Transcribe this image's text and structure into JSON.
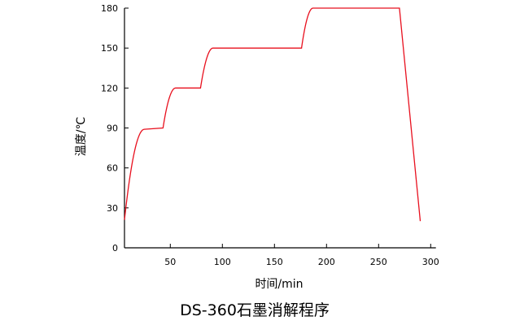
{
  "chart_data": {
    "type": "line",
    "title": "DS-360石墨消解程序",
    "xlabel": "时间/min",
    "ylabel": "温度/℃",
    "xlim": [
      6,
      305
    ],
    "ylim": [
      0,
      180
    ],
    "xticks": [
      50,
      100,
      150,
      200,
      250,
      300
    ],
    "yticks": [
      0,
      30,
      60,
      90,
      120,
      150,
      180
    ],
    "grid": false,
    "line_color": "#e8101e",
    "series": [
      {
        "points": [
          {
            "x": 6,
            "y": 21,
            "ramp": false
          },
          {
            "x": 25,
            "y": 89,
            "ramp": true
          },
          {
            "x": 43,
            "y": 90,
            "ramp": false
          },
          {
            "x": 55,
            "y": 120,
            "ramp": true
          },
          {
            "x": 79,
            "y": 120,
            "ramp": false
          },
          {
            "x": 91,
            "y": 150,
            "ramp": true
          },
          {
            "x": 176,
            "y": 150,
            "ramp": false
          },
          {
            "x": 187,
            "y": 180,
            "ramp": true
          },
          {
            "x": 270,
            "y": 180,
            "ramp": false
          },
          {
            "x": 290,
            "y": 20,
            "ramp": false
          }
        ]
      }
    ]
  }
}
